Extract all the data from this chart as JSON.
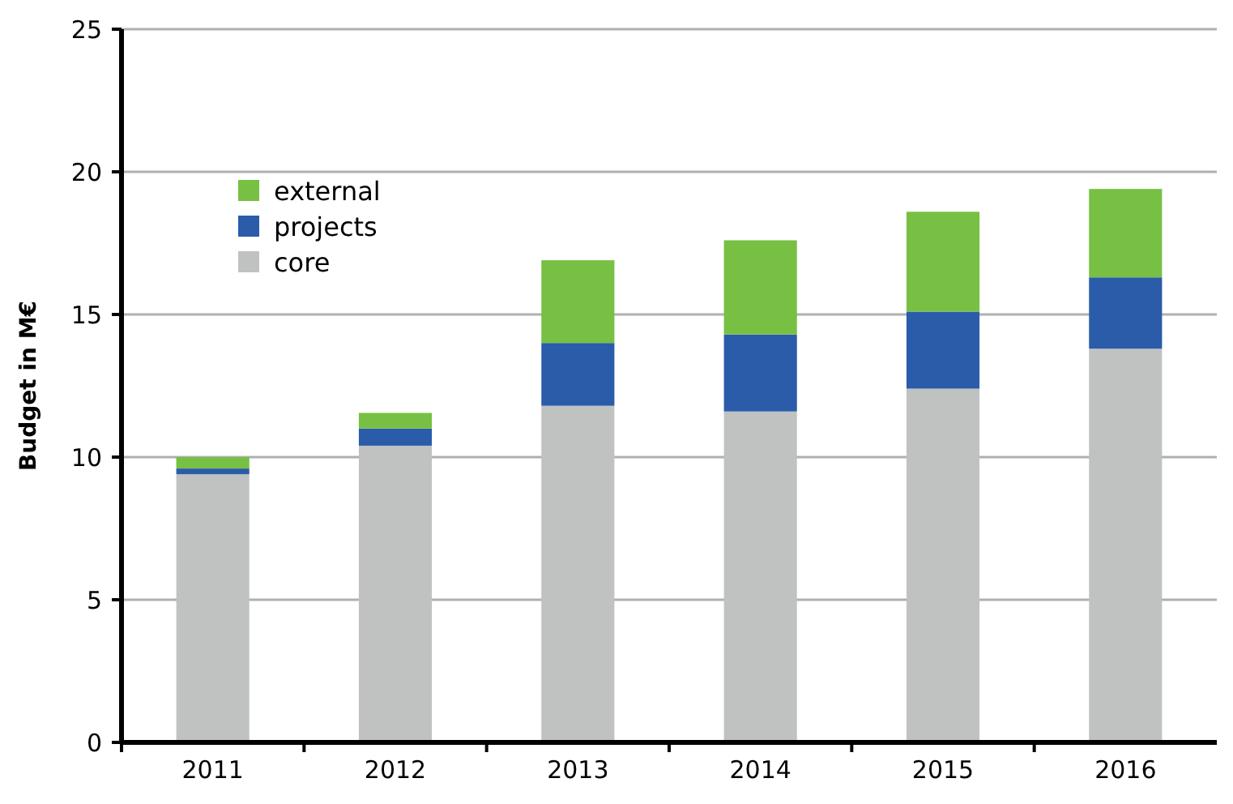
{
  "chart_data": {
    "type": "bar",
    "stacked": true,
    "ylabel": "Budget in M€",
    "categories": [
      "2011",
      "2012",
      "2013",
      "2014",
      "2015",
      "2016"
    ],
    "series": [
      {
        "name": "core",
        "color": "#c0c2c2",
        "values": [
          9.4,
          10.4,
          11.8,
          11.6,
          12.4,
          13.8
        ]
      },
      {
        "name": "projects",
        "color": "#2a5caa",
        "values": [
          0.2,
          0.6,
          2.2,
          2.7,
          2.7,
          2.5
        ]
      },
      {
        "name": "external",
        "color": "#77c043",
        "values": [
          0.4,
          0.55,
          2.9,
          3.3,
          3.5,
          3.1
        ]
      }
    ],
    "ylim": [
      0,
      25
    ],
    "yticks": [
      0,
      5,
      10,
      15,
      20,
      25
    ],
    "grid": "y",
    "legend": "top left"
  }
}
